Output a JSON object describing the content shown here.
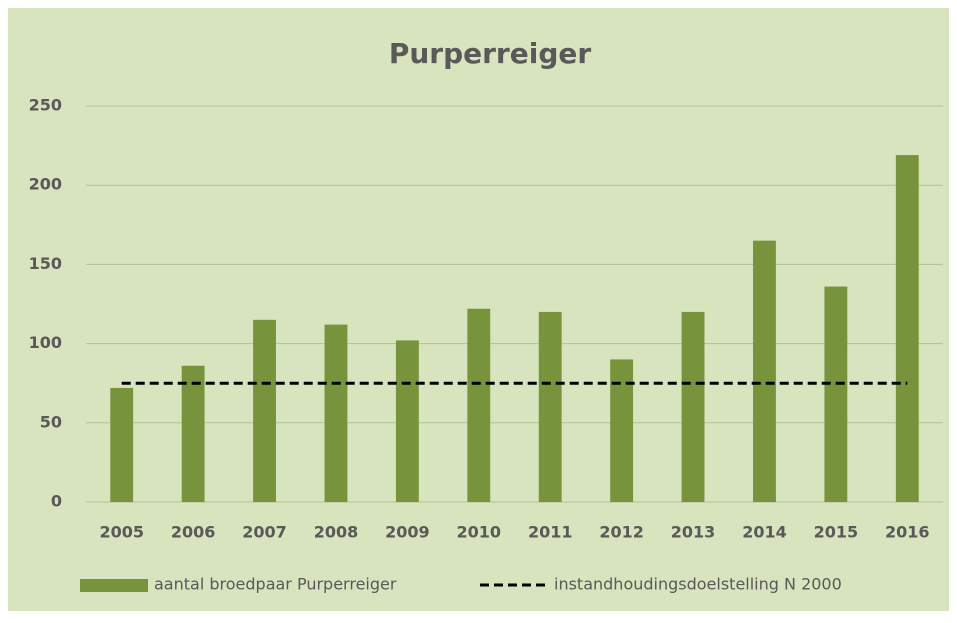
{
  "chart_data": {
    "type": "bar",
    "title": "Purperreiger",
    "categories": [
      "2005",
      "2006",
      "2007",
      "2008",
      "2009",
      "2010",
      "2011",
      "2012",
      "2013",
      "2014",
      "2015",
      "2016"
    ],
    "series": [
      {
        "name": "aantal broedpaar Purperreiger",
        "type": "bar",
        "color": "#77933c",
        "values": [
          72,
          86,
          115,
          112,
          102,
          122,
          120,
          90,
          120,
          165,
          136,
          219
        ]
      },
      {
        "name": "instandhoudingsdoelstelling N 2000",
        "type": "line",
        "color": "#000000",
        "values": [
          75,
          75,
          75,
          75,
          75,
          75,
          75,
          75,
          75,
          75,
          75,
          75
        ]
      }
    ],
    "ylim": [
      0,
      250
    ],
    "yticks": [
      0,
      50,
      100,
      150,
      200,
      250
    ],
    "grid": true,
    "legend": "bottom"
  }
}
